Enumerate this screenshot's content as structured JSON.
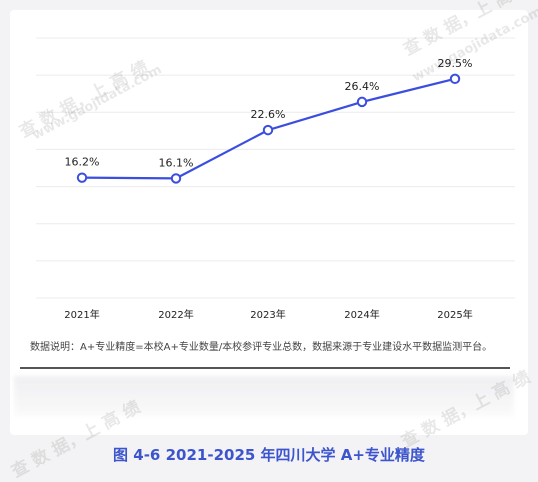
{
  "chart_data": {
    "type": "line",
    "title": "",
    "xlabel": "",
    "ylabel": "",
    "categories": [
      "2021年",
      "2022年",
      "2023年",
      "2024年",
      "2025年"
    ],
    "values": [
      16.2,
      16.1,
      22.6,
      26.4,
      29.5
    ],
    "data_labels": [
      "16.2%",
      "16.1%",
      "22.6%",
      "26.4%",
      "29.5%"
    ],
    "ylim": [
      0,
      35
    ],
    "grid": true,
    "legend": "none",
    "line_color": "#3b4ee0"
  },
  "note": "数据说明：A+专业精度=本校A+专业数量/本校参评专业总数，数据来源于专业建设水平数据监测平台。",
  "caption": "图 4-6   2021-2025 年四川大学 A+专业精度",
  "watermark": {
    "text_main": "查 数 据，上 高 绩",
    "text_url": "www.gaojidata.com"
  }
}
